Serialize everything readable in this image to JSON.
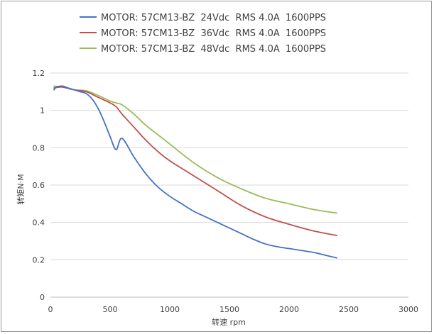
{
  "chart_data": {
    "type": "line",
    "xlabel": "转速 rpm",
    "ylabel": "转矩N·M",
    "xlim": [
      0,
      3000
    ],
    "ylim": [
      0,
      1.2
    ],
    "xticks": [
      0,
      500,
      1000,
      1500,
      2000,
      2500,
      3000
    ],
    "yticks": [
      0,
      0.2,
      0.4,
      0.6,
      0.8,
      1,
      1.2
    ],
    "xtick_labels": [
      "0",
      "500",
      "1000",
      "1500",
      "2000",
      "2500",
      "3000"
    ],
    "ytick_labels": [
      "0",
      "0.2",
      "0.4",
      "0.6",
      "0.8",
      "1",
      "1.2"
    ],
    "grid": "horizontal",
    "legend_position": "top",
    "series": [
      {
        "name": "MOTOR: 57CM13-BZ  24Vdc  RMS 4.0A  1600PPS",
        "color": "#4472c4",
        "x": [
          30,
          50,
          100,
          150,
          200,
          250,
          300,
          350,
          400,
          450,
          500,
          550,
          600,
          700,
          800,
          900,
          1000,
          1100,
          1200,
          1300,
          1400,
          1500,
          1600,
          1700,
          1800,
          1900,
          2000,
          2100,
          2200,
          2300,
          2400
        ],
        "y": [
          1.11,
          1.125,
          1.13,
          1.12,
          1.11,
          1.1,
          1.09,
          1.06,
          1.01,
          0.94,
          0.86,
          0.79,
          0.85,
          0.75,
          0.66,
          0.59,
          0.54,
          0.5,
          0.46,
          0.43,
          0.4,
          0.37,
          0.34,
          0.31,
          0.285,
          0.27,
          0.26,
          0.25,
          0.24,
          0.225,
          0.21
        ]
      },
      {
        "name": "MOTOR: 57CM13-BZ  36Vdc  RMS 4.0A  1600PPS",
        "color": "#c0504d",
        "x": [
          30,
          100,
          200,
          300,
          400,
          500,
          550,
          600,
          700,
          800,
          900,
          1000,
          1200,
          1400,
          1600,
          1800,
          2000,
          2200,
          2400
        ],
        "y": [
          1.12,
          1.125,
          1.11,
          1.1,
          1.07,
          1.04,
          1.02,
          0.98,
          0.91,
          0.84,
          0.78,
          0.73,
          0.65,
          0.57,
          0.49,
          0.43,
          0.39,
          0.355,
          0.33
        ]
      },
      {
        "name": "MOTOR: 57CM13-BZ  48Vdc  RMS 4.0A  1600PPS",
        "color": "#9bbb59",
        "x": [
          30,
          100,
          200,
          300,
          400,
          500,
          550,
          600,
          700,
          800,
          900,
          1000,
          1200,
          1400,
          1600,
          1800,
          2000,
          2200,
          2400
        ],
        "y": [
          1.13,
          1.125,
          1.11,
          1.105,
          1.08,
          1.05,
          1.04,
          1.03,
          0.98,
          0.92,
          0.87,
          0.82,
          0.72,
          0.64,
          0.58,
          0.53,
          0.5,
          0.47,
          0.45
        ]
      }
    ]
  }
}
